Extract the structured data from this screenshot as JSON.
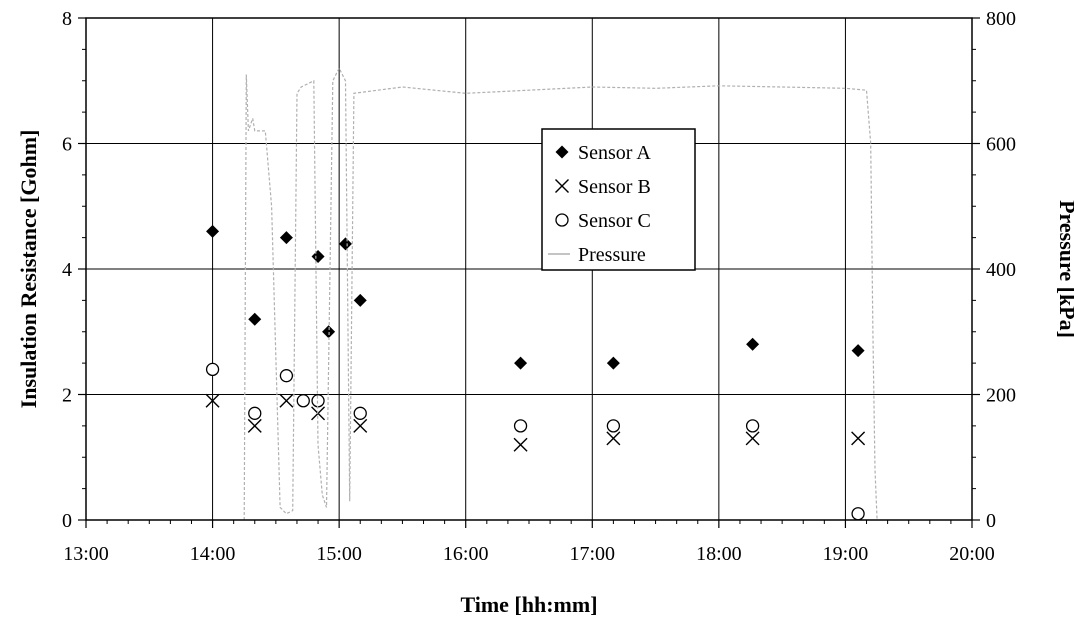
{
  "chart_data": {
    "type": "scatter",
    "xlabel": "Time [hh:mm]",
    "ylabel": "Insulation Resistance [Gohm]",
    "y2label": "Pressure [kPa]",
    "x_ticks": [
      "13:00",
      "14:00",
      "15:00",
      "16:00",
      "17:00",
      "18:00",
      "19:00",
      "20:00"
    ],
    "xlim": [
      "13:00",
      "20:00"
    ],
    "ylim": [
      0,
      8
    ],
    "y_ticks": [
      "0",
      "2",
      "4",
      "6",
      "8"
    ],
    "y2lim": [
      0,
      800
    ],
    "y2_ticks": [
      "0",
      "200",
      "400",
      "600",
      "800"
    ],
    "grid": true,
    "legend_position": "center",
    "series": [
      {
        "name": "Sensor A",
        "marker": "diamond",
        "axis": "left",
        "x": [
          "14:00",
          "14:20",
          "14:35",
          "14:50",
          "14:55",
          "15:03",
          "15:10",
          "16:26",
          "17:10",
          "18:16",
          "19:06"
        ],
        "y": [
          4.6,
          3.2,
          4.5,
          4.2,
          3.0,
          4.4,
          3.5,
          2.5,
          2.5,
          2.8,
          2.7
        ]
      },
      {
        "name": "Sensor B",
        "marker": "x",
        "axis": "left",
        "x": [
          "14:00",
          "14:20",
          "14:35",
          "14:50",
          "15:10",
          "16:26",
          "17:10",
          "18:16",
          "19:06"
        ],
        "y": [
          1.9,
          1.5,
          1.9,
          1.7,
          1.5,
          1.2,
          1.3,
          1.3,
          1.3
        ]
      },
      {
        "name": "Sensor C",
        "marker": "circle",
        "axis": "left",
        "x": [
          "14:00",
          "14:20",
          "14:35",
          "14:43",
          "14:50",
          "15:10",
          "16:26",
          "17:10",
          "18:16",
          "19:06"
        ],
        "y": [
          2.4,
          1.7,
          2.3,
          1.9,
          1.9,
          1.7,
          1.5,
          1.5,
          1.5,
          0.1
        ]
      },
      {
        "name": "Pressure",
        "marker": "line",
        "axis": "right",
        "x": [
          "14:15",
          "14:16",
          "14:17",
          "14:18",
          "14:19",
          "14:20",
          "14:25",
          "14:28",
          "14:32",
          "14:35",
          "14:38",
          "14:40",
          "14:42",
          "14:45",
          "14:48",
          "14:50",
          "14:52",
          "14:54",
          "14:57",
          "15:00",
          "15:03",
          "15:05",
          "15:07",
          "15:30",
          "16:00",
          "16:30",
          "17:00",
          "17:30",
          "18:00",
          "18:30",
          "19:00",
          "19:10",
          "19:12",
          "19:13",
          "19:14",
          "19:15"
        ],
        "y": [
          0,
          710,
          620,
          630,
          640,
          620,
          620,
          500,
          20,
          10,
          15,
          680,
          690,
          695,
          700,
          120,
          40,
          20,
          700,
          720,
          700,
          30,
          680,
          690,
          680,
          685,
          690,
          688,
          692,
          690,
          688,
          685,
          600,
          300,
          80,
          0
        ]
      }
    ]
  },
  "colors": {
    "sensor_a": "#000000",
    "sensor_b": "#000000",
    "sensor_c": "#000000",
    "pressure": "#b0b0b0",
    "grid": "#000000"
  }
}
